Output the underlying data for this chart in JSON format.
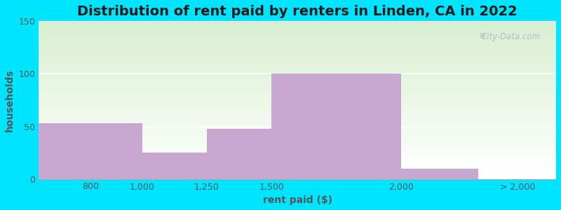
{
  "title": "Distribution of rent paid by renters in Linden, CA in 2022",
  "xlabel": "rent paid ($)",
  "ylabel": "households",
  "bar_values": [
    53,
    25,
    48,
    100,
    10
  ],
  "bar_color": "#c8a8d0",
  "ylim": [
    0,
    150
  ],
  "yticks": [
    0,
    50,
    100,
    150
  ],
  "background_outer": "#00e5ff",
  "background_inner_top": "#d8efd0",
  "background_inner_bottom": "#ffffff",
  "grid_color": "#ffffff",
  "title_fontsize": 14,
  "axis_label_fontsize": 10,
  "tick_fontsize": 9,
  "tick_label_color": "#555555",
  "watermark_text": "City-Data.com",
  "bin_edges": [
    600,
    1000,
    1250,
    1500,
    2000,
    2300,
    2600
  ],
  "tick_positions": [
    800,
    1000,
    1250,
    1500,
    2000,
    2450
  ],
  "tick_labels": [
    "800",
    "1,000",
    "1,250",
    "1,500",
    "2,000",
    "> 2,000"
  ]
}
